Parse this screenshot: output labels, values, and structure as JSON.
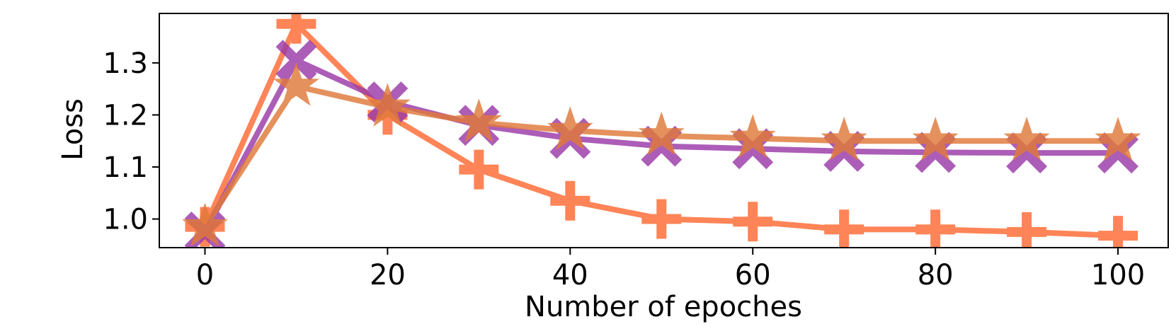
{
  "chart_data": {
    "type": "line",
    "title": "",
    "xlabel": "Number of epoches",
    "ylabel": "Loss",
    "xlim": [
      -5,
      105.5
    ],
    "ylim": [
      0.945,
      1.395
    ],
    "xticks": [
      0,
      20,
      40,
      60,
      80,
      100
    ],
    "xtick_labels": [
      "0",
      "20",
      "40",
      "60",
      "80",
      "100"
    ],
    "yticks": [
      1.0,
      1.1,
      1.2,
      1.3
    ],
    "ytick_labels": [
      "1.0",
      "1.1",
      "1.2",
      "1.3"
    ],
    "grid": false,
    "legend": "none",
    "x": [
      0,
      10,
      20,
      30,
      40,
      50,
      60,
      70,
      80,
      90,
      100
    ],
    "series": [
      {
        "marker": "plus",
        "color": "#ff6a33",
        "values": [
          0.985,
          1.375,
          1.2,
          1.095,
          1.035,
          1.0,
          0.995,
          0.98,
          0.98,
          0.975,
          0.968
        ]
      },
      {
        "marker": "x",
        "color": "#9b3aa8",
        "values": [
          0.975,
          1.305,
          1.225,
          1.18,
          1.155,
          1.14,
          1.135,
          1.13,
          1.128,
          1.127,
          1.127
        ]
      },
      {
        "marker": "star",
        "color": "#e07a3a",
        "values": [
          0.985,
          1.255,
          1.215,
          1.185,
          1.17,
          1.16,
          1.155,
          1.15,
          1.15,
          1.15,
          1.15
        ]
      }
    ]
  }
}
